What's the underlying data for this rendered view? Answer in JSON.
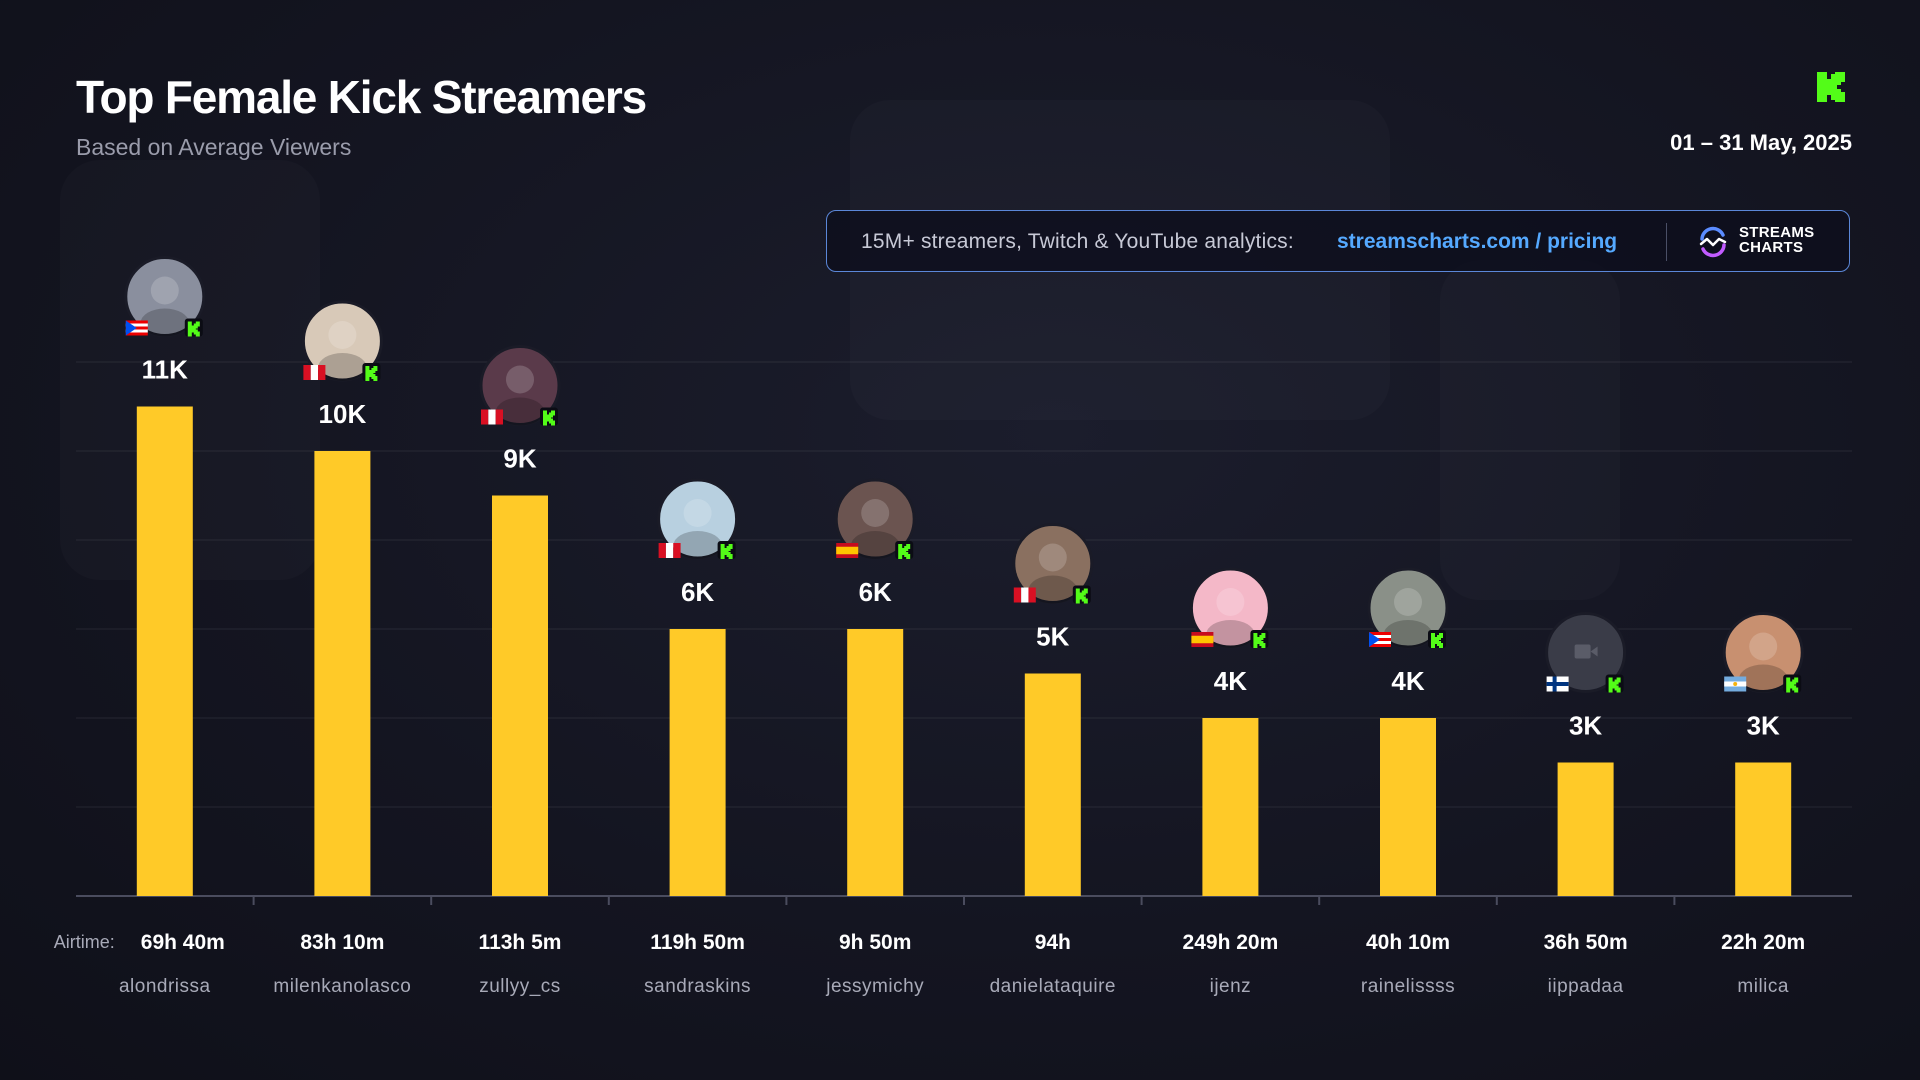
{
  "header": {
    "title": "Top Female Kick Streamers",
    "subtitle": "Based on Average Viewers",
    "date_range": "01 – 31 May, 2025"
  },
  "promo": {
    "text": "15M+ streamers, Twitch & YouTube analytics:",
    "link": "streamscharts.com / pricing",
    "brand_line1": "STREAMS",
    "brand_line2": "CHARTS"
  },
  "colors": {
    "bar": "#FFCA28",
    "kick_green": "#53FC18",
    "link": "#55A9FF"
  },
  "airtime_label": "Airtime:",
  "chart_data": {
    "type": "bar",
    "categories": [
      "alondrissa",
      "milenkanolasco",
      "zullyy_cs",
      "sandraskins",
      "jessymichy",
      "danielataquire",
      "ijenz",
      "rainelissss",
      "iippadaa",
      "milica"
    ],
    "values": [
      11000,
      10000,
      9000,
      6000,
      6000,
      5000,
      4000,
      4000,
      3000,
      3000
    ],
    "value_labels": [
      "11K",
      "10K",
      "9K",
      "6K",
      "6K",
      "5K",
      "4K",
      "4K",
      "3K",
      "3K"
    ],
    "airtime": [
      "69h 40m",
      "83h 10m",
      "113h 5m",
      "119h 50m",
      "9h 50m",
      "94h",
      "249h 20m",
      "40h 10m",
      "36h 50m",
      "22h 20m"
    ],
    "countries": [
      "PR",
      "PE",
      "PE",
      "PE",
      "ES",
      "PE",
      "ES",
      "PR",
      "FI",
      "AR"
    ],
    "platform": "kick-icon",
    "title": "Top Female Kick Streamers",
    "ylim": [
      0,
      11000
    ],
    "grid": true,
    "legend": "none"
  }
}
